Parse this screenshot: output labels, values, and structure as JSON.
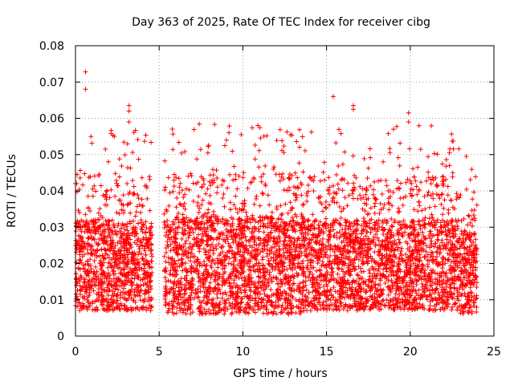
{
  "chart_data": {
    "type": "scatter",
    "title": "Day 363 of 2025, Rate Of TEC Index for receiver cibg",
    "xlabel": "GPS time / hours",
    "ylabel": "ROTI / TECUs",
    "xlim": [
      0,
      25
    ],
    "ylim": [
      0,
      0.08
    ],
    "x_ticks": [
      "0",
      "5",
      "10",
      "15",
      "20",
      "25"
    ],
    "y_ticks": [
      "0",
      "0.01",
      "0.02",
      "0.03",
      "0.04",
      "0.05",
      "0.06",
      "0.07",
      "0.08"
    ],
    "x_tick_values": [
      0,
      5,
      10,
      15,
      20,
      25
    ],
    "y_tick_values": [
      0,
      0.01,
      0.02,
      0.03,
      0.04,
      0.05,
      0.06,
      0.07,
      0.08
    ],
    "grid": true,
    "marker": "+",
    "marker_color": "#ff0000",
    "data_segments": [
      {
        "x_start": 0.0,
        "x_end": 4.6,
        "y_low": 0.007,
        "y_high": 0.032
      },
      {
        "x_start": 5.3,
        "x_end": 13.7,
        "y_low": 0.006,
        "y_high": 0.033
      },
      {
        "x_start": 13.7,
        "x_end": 22.9,
        "y_low": 0.007,
        "y_high": 0.032
      },
      {
        "x_start": 22.9,
        "x_end": 24.0,
        "y_low": 0.006,
        "y_high": 0.029
      }
    ],
    "notable_points": [
      {
        "x": 0.6,
        "y": 0.0728
      },
      {
        "x": 0.6,
        "y": 0.068
      },
      {
        "x": 3.2,
        "y": 0.0635
      },
      {
        "x": 3.2,
        "y": 0.062
      },
      {
        "x": 3.2,
        "y": 0.059
      },
      {
        "x": 9.9,
        "y": 0.0555
      },
      {
        "x": 10.9,
        "y": 0.058
      },
      {
        "x": 15.4,
        "y": 0.066
      },
      {
        "x": 16.6,
        "y": 0.0635
      },
      {
        "x": 16.6,
        "y": 0.0625
      },
      {
        "x": 19.0,
        "y": 0.057
      },
      {
        "x": 19.9,
        "y": 0.0615
      },
      {
        "x": 19.9,
        "y": 0.059
      },
      {
        "x": 0.1,
        "y": 0.0445
      },
      {
        "x": 0.0,
        "y": 0.042
      }
    ]
  }
}
